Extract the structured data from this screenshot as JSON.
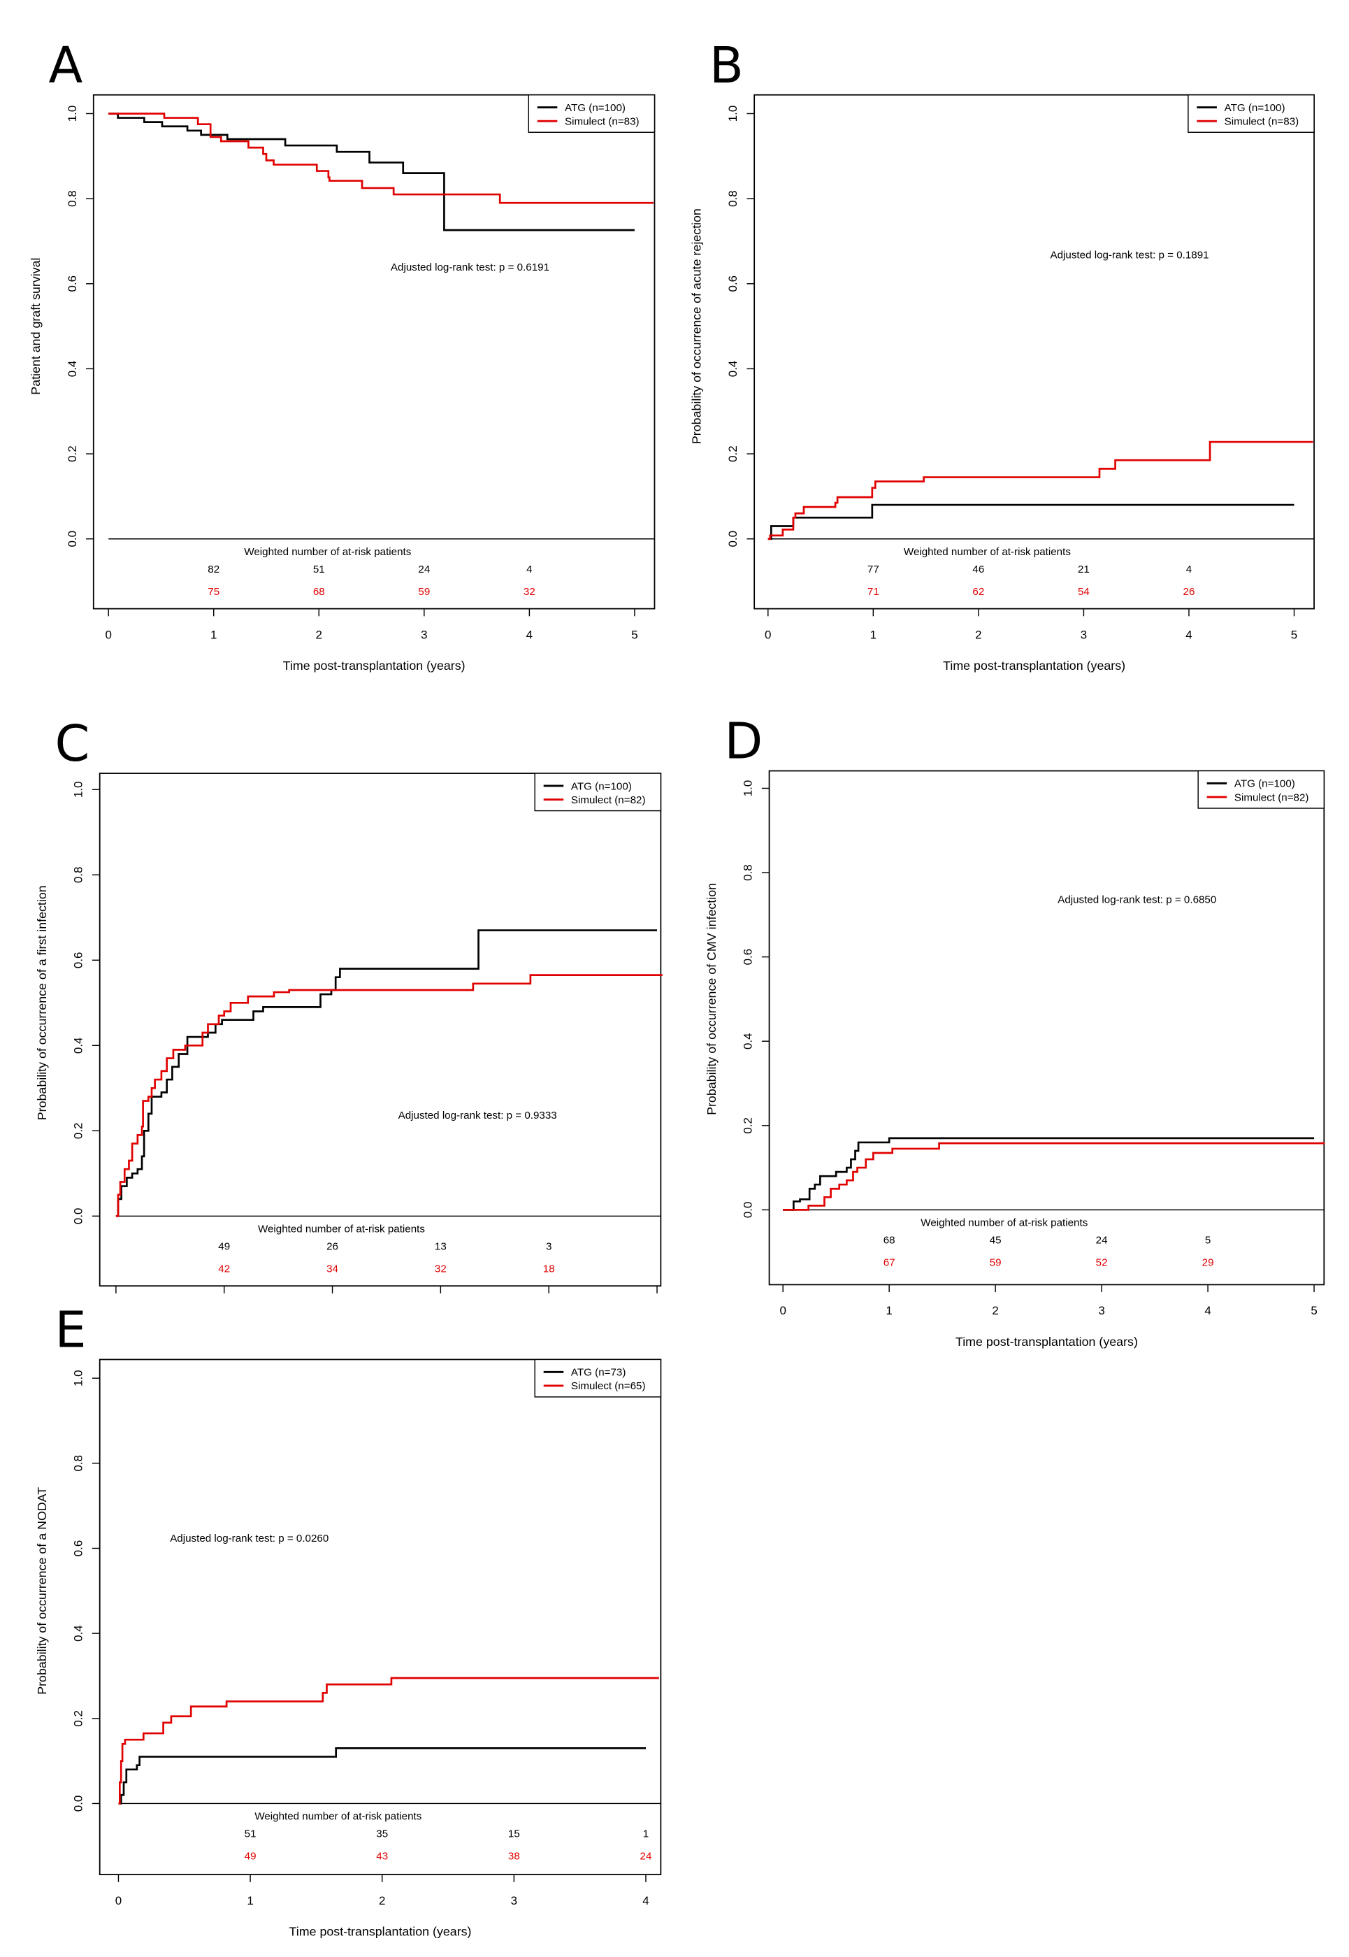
{
  "chart_data": [
    {
      "panel": "A",
      "type": "line",
      "step": true,
      "ylabel": "Patient and graft survival",
      "xlabel": "Time post-transplantation (years)",
      "xlim": [
        0,
        5
      ],
      "ylim": [
        0,
        1
      ],
      "xticks": [
        "0",
        "1",
        "2",
        "3",
        "4",
        "5"
      ],
      "yticks": [
        "0.0",
        "0.2",
        "0.4",
        "0.6",
        "0.8",
        "1.0"
      ],
      "test": "Adjusted log-rank test: p = 0.6191",
      "at_risk_title": "Weighted number of at-risk patients",
      "at_risk": {
        "ATG": [
          "82",
          "51",
          "24",
          "4"
        ],
        "Simulect": [
          "75",
          "68",
          "59",
          "32"
        ]
      },
      "legend_position": "top-right",
      "series": [
        {
          "name": "ATG (n=100)",
          "color": "#000000",
          "x": [
            0,
            0.09,
            0.34,
            0.51,
            0.75,
            0.88,
            1.13,
            1.68,
            2.17,
            2.48,
            2.8,
            3.19,
            5.0
          ],
          "y": [
            1.0,
            0.99,
            0.98,
            0.97,
            0.96,
            0.95,
            0.94,
            0.925,
            0.91,
            0.885,
            0.86,
            0.726,
            0.726
          ]
        },
        {
          "name": "Simulect (n=83)",
          "color": "#e00000",
          "x": [
            0,
            0.53,
            0.85,
            0.97,
            1.07,
            1.33,
            1.47,
            1.5,
            1.57,
            1.98,
            2.09,
            2.1,
            2.41,
            2.71,
            3.72,
            5.18
          ],
          "y": [
            1.0,
            0.99,
            0.975,
            0.945,
            0.935,
            0.92,
            0.905,
            0.89,
            0.88,
            0.865,
            0.85,
            0.842,
            0.825,
            0.81,
            0.79,
            0.79
          ]
        }
      ]
    },
    {
      "panel": "B",
      "type": "line",
      "step": true,
      "ylabel": "Probability of occurrence of acute rejection",
      "xlabel": "Time post-transplantation (years)",
      "xlim": [
        0,
        5
      ],
      "ylim": [
        0,
        1
      ],
      "xticks": [
        "0",
        "1",
        "2",
        "3",
        "4",
        "5"
      ],
      "yticks": [
        "0.0",
        "0.2",
        "0.4",
        "0.6",
        "0.8",
        "1.0"
      ],
      "test": "Adjusted log-rank test: p = 0.1891",
      "at_risk_title": "Weighted number of at-risk patients",
      "at_risk": {
        "ATG": [
          "77",
          "46",
          "21",
          "4"
        ],
        "Simulect": [
          "71",
          "62",
          "54",
          "26"
        ]
      },
      "legend_position": "top-right",
      "series": [
        {
          "name": "ATG (n=100)",
          "color": "#000000",
          "x": [
            0,
            0.03,
            0.24,
            0.99,
            5.0
          ],
          "y": [
            0,
            0.03,
            0.05,
            0.08,
            0.08
          ]
        },
        {
          "name": "Simulect (n=83)",
          "color": "#e00000",
          "x": [
            0,
            0.02,
            0.14,
            0.24,
            0.26,
            0.34,
            0.64,
            0.66,
            0.99,
            1.02,
            1.48,
            3.15,
            3.3,
            4.2,
            5.18
          ],
          "y": [
            0,
            0.008,
            0.022,
            0.05,
            0.06,
            0.075,
            0.085,
            0.098,
            0.12,
            0.135,
            0.145,
            0.165,
            0.185,
            0.228,
            0.228
          ]
        }
      ]
    },
    {
      "panel": "C",
      "type": "line",
      "step": true,
      "ylabel": "Probability of occurrence of a first infection",
      "xlabel": "",
      "xlim": [
        0,
        5
      ],
      "ylim": [
        0,
        1
      ],
      "xticks": [],
      "yticks": [
        "0.0",
        "0.2",
        "0.4",
        "0.6",
        "0.8",
        "1.0"
      ],
      "test": "Adjusted log-rank test: p = 0.9333",
      "at_risk_title": "Weighted number of at-risk patients",
      "at_risk": {
        "ATG": [
          "49",
          "26",
          "13",
          "3"
        ],
        "Simulect": [
          "42",
          "34",
          "32",
          "18"
        ]
      },
      "legend_position": "top-right",
      "series": [
        {
          "name": "ATG (n=100)",
          "color": "#000000",
          "x": [
            0,
            0.02,
            0.05,
            0.1,
            0.15,
            0.2,
            0.24,
            0.26,
            0.3,
            0.33,
            0.42,
            0.47,
            0.52,
            0.58,
            0.66,
            0.85,
            0.92,
            0.98,
            1.27,
            1.36,
            1.89,
            1.99,
            2.03,
            2.07,
            3.35,
            5.0
          ],
          "y": [
            0,
            0.04,
            0.07,
            0.09,
            0.1,
            0.11,
            0.14,
            0.2,
            0.24,
            0.28,
            0.29,
            0.32,
            0.35,
            0.38,
            0.42,
            0.43,
            0.45,
            0.46,
            0.48,
            0.49,
            0.52,
            0.53,
            0.56,
            0.58,
            0.67,
            0.67
          ]
        },
        {
          "name": "Simulect (n=82)",
          "color": "#e00000",
          "x": [
            0,
            0.02,
            0.04,
            0.08,
            0.12,
            0.15,
            0.2,
            0.24,
            0.25,
            0.3,
            0.33,
            0.36,
            0.42,
            0.47,
            0.53,
            0.64,
            0.8,
            0.85,
            0.95,
            1.0,
            1.06,
            1.22,
            1.46,
            1.6,
            3.3,
            3.83,
            5.05
          ],
          "y": [
            0,
            0.05,
            0.08,
            0.11,
            0.13,
            0.17,
            0.19,
            0.21,
            0.27,
            0.28,
            0.3,
            0.32,
            0.34,
            0.37,
            0.39,
            0.4,
            0.43,
            0.45,
            0.47,
            0.48,
            0.5,
            0.515,
            0.525,
            0.53,
            0.545,
            0.565,
            0.565
          ]
        }
      ]
    },
    {
      "panel": "D",
      "type": "line",
      "step": true,
      "ylabel": "Probability of occurrence of CMV infection",
      "xlabel": "Time post-transplantation (years)",
      "xlim": [
        0,
        5
      ],
      "ylim": [
        0,
        1
      ],
      "xticks": [
        "0",
        "1",
        "2",
        "3",
        "4",
        "5"
      ],
      "yticks": [
        "0.0",
        "0.2",
        "0.4",
        "0.6",
        "0.8",
        "1.0"
      ],
      "test": "Adjusted log-rank test: p = 0.6850",
      "at_risk_title": "Weighted number of at-risk patients",
      "at_risk": {
        "ATG": [
          "68",
          "45",
          "24",
          "5"
        ],
        "Simulect": [
          "67",
          "59",
          "52",
          "29"
        ]
      },
      "legend_position": "top-right",
      "series": [
        {
          "name": "ATG (n=100)",
          "color": "#000000",
          "x": [
            0,
            0.1,
            0.16,
            0.25,
            0.3,
            0.35,
            0.5,
            0.6,
            0.64,
            0.68,
            0.71,
            1.0,
            5.0
          ],
          "y": [
            0,
            0.02,
            0.025,
            0.05,
            0.06,
            0.08,
            0.09,
            0.1,
            0.12,
            0.14,
            0.16,
            0.17,
            0.17
          ]
        },
        {
          "name": "Simulect (n=82)",
          "color": "#e00000",
          "x": [
            0,
            0.24,
            0.39,
            0.45,
            0.53,
            0.6,
            0.66,
            0.7,
            0.78,
            0.85,
            1.03,
            1.47,
            5.1
          ],
          "y": [
            0,
            0.01,
            0.03,
            0.05,
            0.06,
            0.07,
            0.09,
            0.1,
            0.12,
            0.135,
            0.145,
            0.158,
            0.158
          ]
        }
      ]
    },
    {
      "panel": "E",
      "type": "line",
      "step": true,
      "ylabel": "Probability of occurrence of a NODAT",
      "xlabel": "Time post-transplantation (years)",
      "xlim": [
        0,
        4
      ],
      "ylim": [
        0,
        1
      ],
      "xticks": [
        "0",
        "1",
        "2",
        "3",
        "4"
      ],
      "yticks": [
        "0.0",
        "0.2",
        "0.4",
        "0.6",
        "0.8",
        "1.0"
      ],
      "test": "Adjusted log-rank test: p = 0.0260",
      "at_risk_title": "Weighted number of at-risk patients",
      "at_risk": {
        "ATG": [
          "51",
          "35",
          "15",
          "1"
        ],
        "Simulect": [
          "49",
          "43",
          "38",
          "24"
        ]
      },
      "legend_position": "top-right",
      "series": [
        {
          "name": "ATG (n=73)",
          "color": "#000000",
          "x": [
            0,
            0.02,
            0.04,
            0.06,
            0.14,
            0.16,
            1.65,
            4.0
          ],
          "y": [
            0,
            0.02,
            0.05,
            0.08,
            0.09,
            0.11,
            0.13,
            0.13
          ]
        },
        {
          "name": "Simulect (n=65)",
          "color": "#e00000",
          "x": [
            0,
            0.01,
            0.02,
            0.03,
            0.05,
            0.19,
            0.34,
            0.4,
            0.55,
            0.82,
            1.55,
            1.58,
            2.07,
            4.1
          ],
          "y": [
            0,
            0.05,
            0.1,
            0.14,
            0.15,
            0.165,
            0.19,
            0.205,
            0.228,
            0.24,
            0.26,
            0.28,
            0.295,
            0.295
          ]
        }
      ]
    }
  ]
}
